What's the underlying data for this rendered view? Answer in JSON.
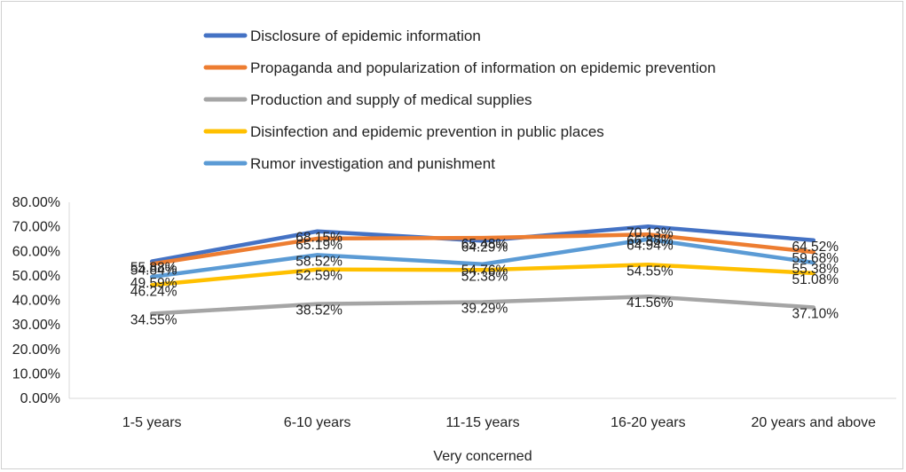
{
  "chart_data": {
    "type": "line",
    "title": "",
    "xlabel": "Very concerned",
    "ylabel": "",
    "ylim": [
      0,
      80
    ],
    "y_ticks": [
      "0.00%",
      "10.00%",
      "20.00%",
      "30.00%",
      "40.00%",
      "50.00%",
      "60.00%",
      "70.00%",
      "80.00%"
    ],
    "categories": [
      "1-5 years",
      "6-10 years",
      "11-15 years",
      "16-20 years",
      "20 years and above"
    ],
    "legend_position": "top",
    "series": [
      {
        "name": "Disclosure of epidemic information",
        "color": "#4472C4",
        "values": [
          55.88,
          68.15,
          64.29,
          70.13,
          64.52
        ],
        "labels": [
          "55.88%",
          "68.15%",
          "64.29%",
          "70.13%",
          "64.52%"
        ]
      },
      {
        "name": "Propaganda and popularization of information on epidemic prevention",
        "color": "#ED7D31",
        "values": [
          54.84,
          65.19,
          65.48,
          66.88,
          59.68
        ],
        "labels": [
          "54.84%",
          "65.19%",
          "65.48%",
          "66.88%",
          "59.68%"
        ]
      },
      {
        "name": "Production and supply of medical supplies",
        "color": "#A5A5A5",
        "values": [
          34.55,
          38.52,
          39.29,
          41.56,
          37.1
        ],
        "labels": [
          "34.55%",
          "38.52%",
          "39.29%",
          "41.56%",
          "37.10%"
        ]
      },
      {
        "name": " Disinfection and epidemic prevention in public places",
        "color": "#FFC000",
        "values": [
          46.24,
          52.59,
          52.38,
          54.55,
          51.08
        ],
        "labels": [
          "46.24%",
          "52.59%",
          "52.38%",
          "54.55%",
          "51.08%"
        ]
      },
      {
        "name": "Rumor investigation and punishment",
        "color": "#5B9BD5",
        "values": [
          49.59,
          58.52,
          54.76,
          64.94,
          55.38
        ],
        "labels": [
          "49.59%",
          "58.52%",
          "54.76%",
          "64.94%",
          "55.38%"
        ]
      }
    ]
  }
}
